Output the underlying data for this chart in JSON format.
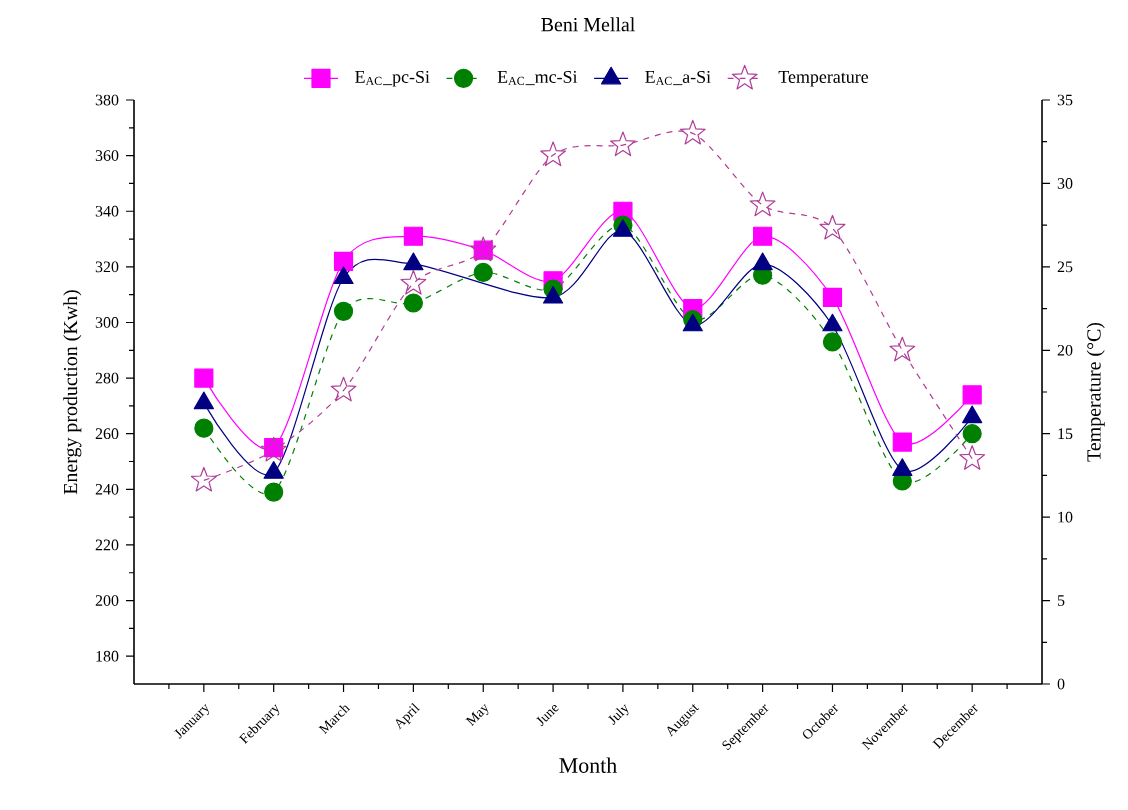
{
  "chart_data": {
    "type": "line",
    "title": "Beni Mellal",
    "xlabel": "Month",
    "ylabel": "Energy production (Kwh)",
    "y2label": "Temperature (°C)",
    "categories": [
      "January",
      "February",
      "March",
      "April",
      "May",
      "June",
      "July",
      "August",
      "September",
      "October",
      "November",
      "December"
    ],
    "ylim": [
      170,
      380
    ],
    "yticks": [
      180,
      200,
      220,
      240,
      260,
      280,
      300,
      320,
      340,
      360,
      380
    ],
    "y2lim": [
      0,
      35
    ],
    "y2ticks": [
      0,
      5,
      10,
      15,
      20,
      25,
      30,
      35
    ],
    "legend": "top",
    "grid": false,
    "series": [
      {
        "name": "E$_{AC}$_pc-Si",
        "color": "#ff00ff",
        "marker": "square",
        "line_style": "solid",
        "values": [
          280,
          255,
          322,
          331,
          326,
          315,
          340,
          305,
          331,
          309,
          257,
          274
        ]
      },
      {
        "name": "E$_{AC}$_mc-Si",
        "color": "#008000",
        "marker": "circle",
        "line_style": "dashed",
        "values": [
          262,
          239,
          304,
          307,
          318,
          312,
          335,
          301,
          317,
          293,
          243,
          260
        ]
      },
      {
        "name": "E$_{AC}$_a-Si",
        "color": "#000080",
        "marker": "triangle",
        "line_style": "solid",
        "values": [
          271,
          246,
          316,
          321,
          null,
          309,
          333,
          299,
          321,
          299,
          247,
          266
        ]
      },
      {
        "name": "Temperature",
        "color": "#b03c96",
        "marker": "star",
        "line_style": "dashed",
        "axis": "y2",
        "values": [
          12.2,
          14,
          17.6,
          24,
          26,
          31.7,
          32.3,
          33,
          28.7,
          27.3,
          20,
          13.5
        ]
      }
    ]
  }
}
